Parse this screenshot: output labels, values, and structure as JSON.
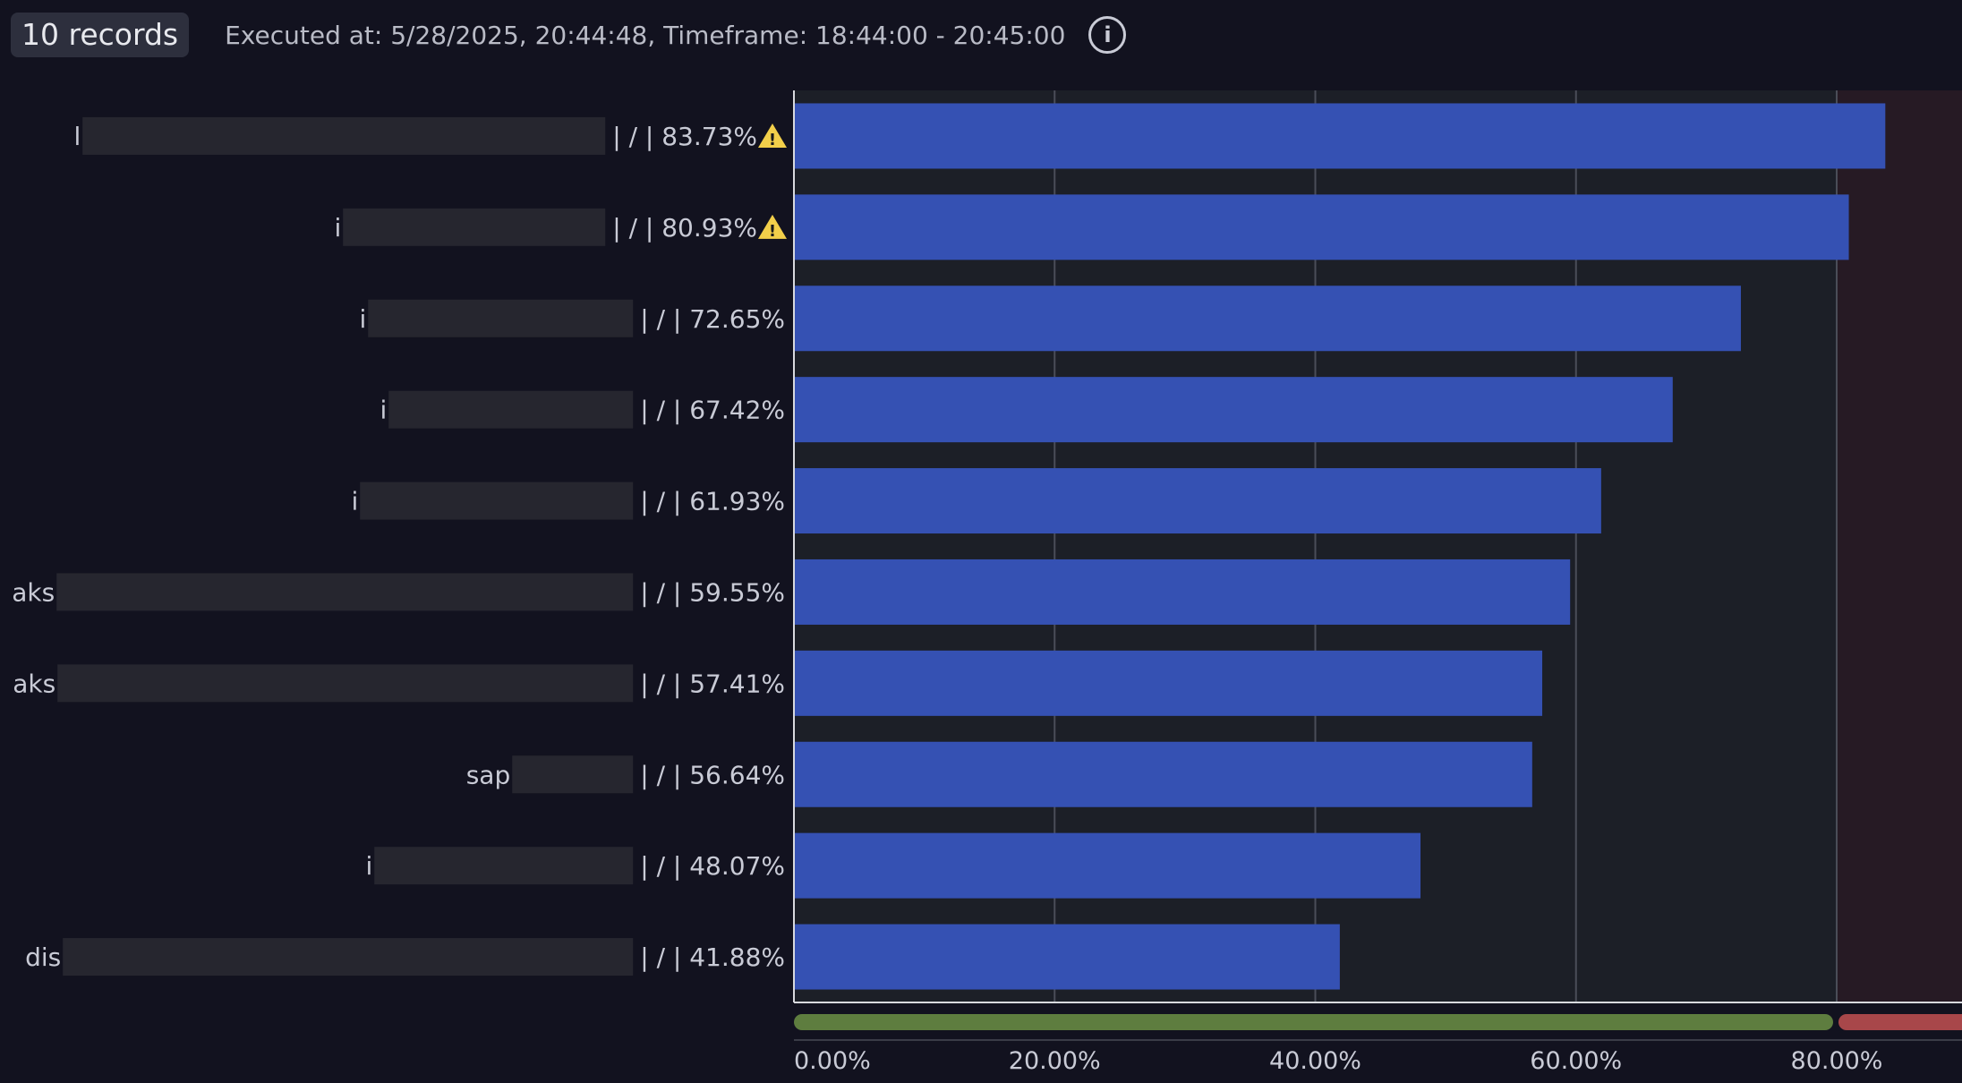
{
  "header": {
    "records_badge": "10 records",
    "executed_text": "Executed at: 5/28/2025, 20:44:48, Timeframe: 18:44:00 - 20:45:00",
    "info_icon": "info-circle-icon"
  },
  "colors": {
    "background": "#12121f",
    "plot_background": "#1c1f27",
    "bar": "#3551b3",
    "threshold_ok": "#5e7d3f",
    "threshold_critical": "#a8474a",
    "critical_zone": "#261a24",
    "warning_icon": "#f2cf4a",
    "redacted_block": "#26262f"
  },
  "chart_data": {
    "type": "bar",
    "orientation": "horizontal",
    "categories": [
      {
        "prefix": "l",
        "label": "| / | 83.73%",
        "warning": true
      },
      {
        "prefix": "i",
        "label": "| / | 80.93%",
        "warning": true
      },
      {
        "prefix": "i",
        "label": "| / | 72.65%",
        "warning": false
      },
      {
        "prefix": "i",
        "label": "| / | 67.42%",
        "warning": false
      },
      {
        "prefix": "i",
        "label": "| / | 61.93%",
        "warning": false
      },
      {
        "prefix": "aks",
        "label": "| / | 59.55%",
        "warning": false
      },
      {
        "prefix": "aks",
        "label": "| / | 57.41%",
        "warning": false
      },
      {
        "prefix": "sap",
        "label": "| / | 56.64%",
        "warning": false
      },
      {
        "prefix": "i",
        "label": "| / | 48.07%",
        "warning": false
      },
      {
        "prefix": "dis",
        "label": "| / | 41.88%",
        "warning": false
      }
    ],
    "values": [
      83.73,
      80.93,
      72.65,
      67.42,
      61.93,
      59.55,
      57.41,
      56.64,
      48.07,
      41.88
    ],
    "x_ticks": [
      "0.00%",
      "20.00%",
      "40.00%",
      "60.00%",
      "80.00%"
    ],
    "x_tick_values": [
      0,
      20,
      40,
      60,
      80
    ],
    "xlim": [
      0,
      90
    ],
    "threshold": 80,
    "grid": true
  }
}
